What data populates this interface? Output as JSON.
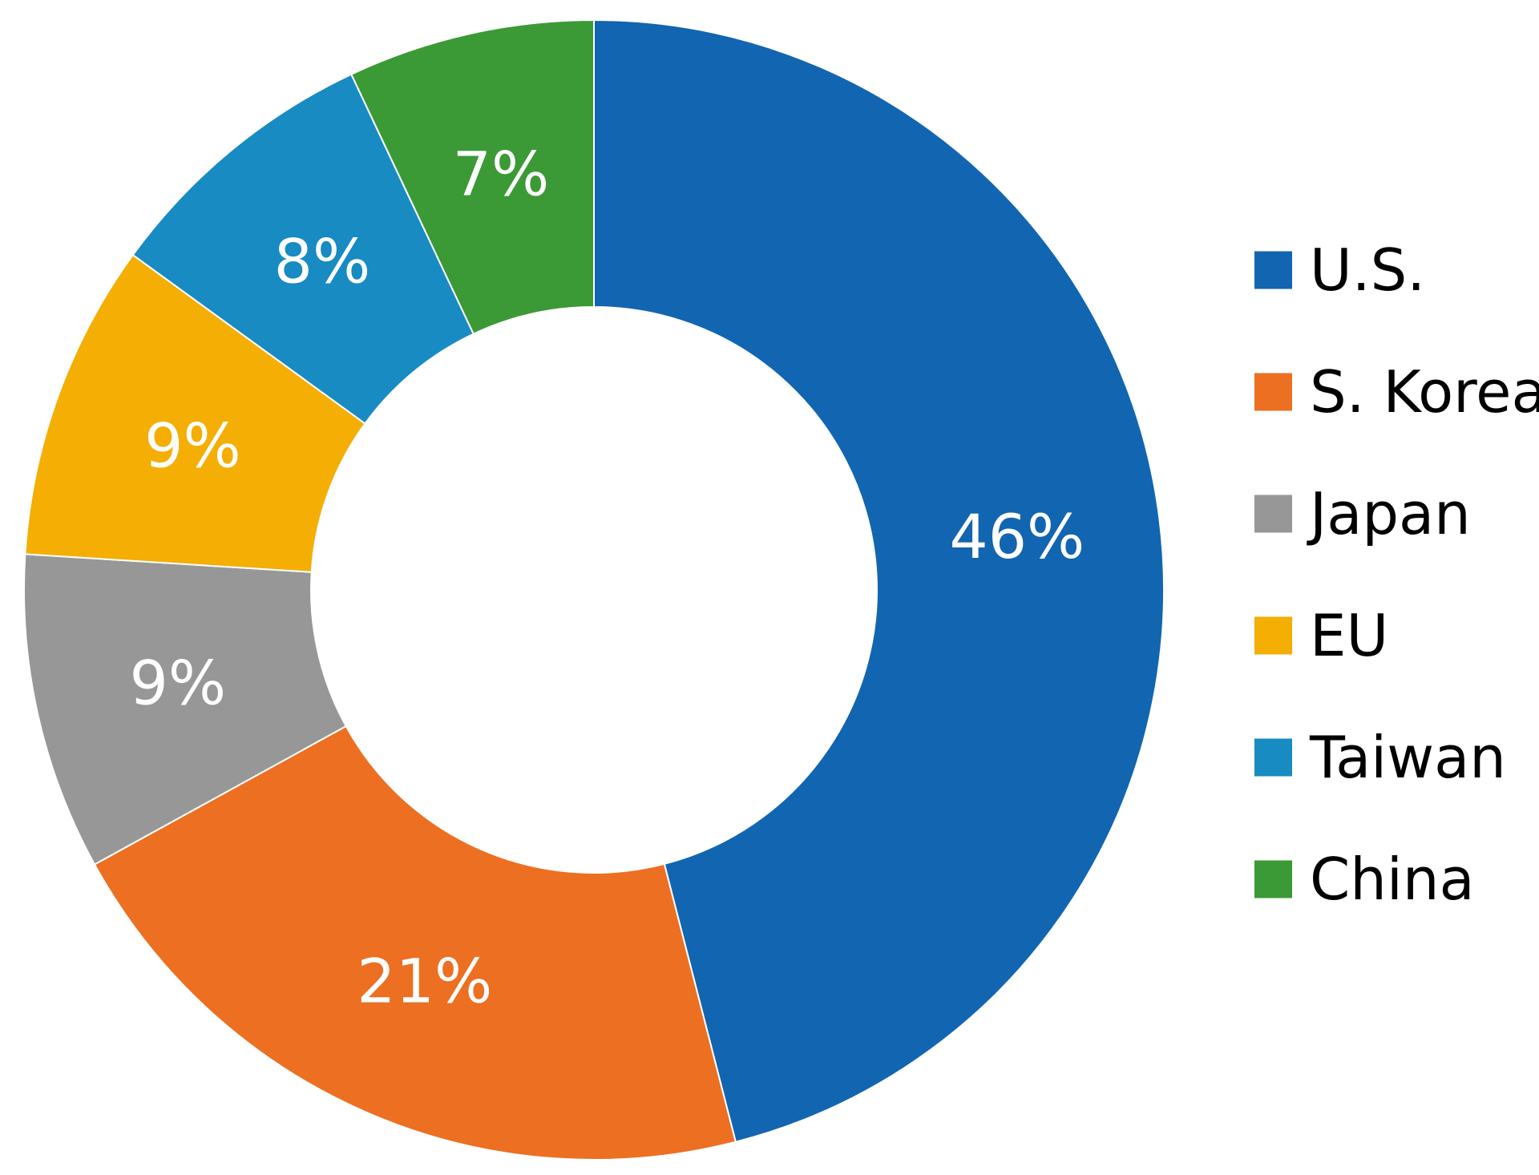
{
  "chart_data": {
    "type": "pie",
    "variant": "donut",
    "title": "",
    "legend_position": "right",
    "slices": [
      {
        "label": "U.S.",
        "value": 46,
        "display": "46%",
        "color": "#1265B0"
      },
      {
        "label": "S. Korea",
        "value": 21,
        "display": "21%",
        "color": "#EC6F22"
      },
      {
        "label": "Japan",
        "value": 9,
        "display": "9%",
        "color": "#979797"
      },
      {
        "label": "EU",
        "value": 9,
        "display": "9%",
        "color": "#F4AE04"
      },
      {
        "label": "Taiwan",
        "value": 8,
        "display": "8%",
        "color": "#178BC2"
      },
      {
        "label": "China",
        "value": 7,
        "display": "7%",
        "color": "#3B9A35"
      }
    ]
  }
}
